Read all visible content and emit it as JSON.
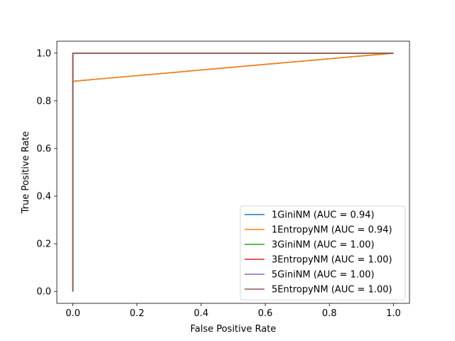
{
  "chart_data": {
    "type": "line",
    "title": "",
    "xlabel": "False Positive Rate",
    "ylabel": "True Positive Rate",
    "xlim": [
      -0.05,
      1.05
    ],
    "ylim": [
      -0.05,
      1.05
    ],
    "xticks": [
      0.0,
      0.2,
      0.4,
      0.6,
      0.8,
      1.0
    ],
    "yticks": [
      0.0,
      0.2,
      0.4,
      0.6,
      0.8,
      1.0
    ],
    "xtick_labels": [
      "0.0",
      "0.2",
      "0.4",
      "0.6",
      "0.8",
      "1.0"
    ],
    "ytick_labels": [
      "0.0",
      "0.2",
      "0.4",
      "0.6",
      "0.8",
      "1.0"
    ],
    "grid": false,
    "legend_position": "lower-right",
    "series": [
      {
        "name": "1GiniNM (AUC = 0.94)",
        "color": "#1f77b4",
        "x": [
          0.0,
          0.0,
          1.0
        ],
        "y": [
          0.0,
          0.882,
          1.0
        ]
      },
      {
        "name": "1EntropyNM (AUC = 0.94)",
        "color": "#ff7f0e",
        "x": [
          0.0,
          0.0,
          1.0
        ],
        "y": [
          0.0,
          0.882,
          1.0
        ]
      },
      {
        "name": "3GiniNM (AUC = 1.00)",
        "color": "#2ca02c",
        "x": [
          0.0,
          0.0,
          1.0
        ],
        "y": [
          0.0,
          1.0,
          1.0
        ]
      },
      {
        "name": "3EntropyNM (AUC = 1.00)",
        "color": "#d62728",
        "x": [
          0.0,
          0.0,
          1.0
        ],
        "y": [
          0.0,
          1.0,
          1.0
        ]
      },
      {
        "name": "5GiniNM (AUC = 1.00)",
        "color": "#9467bd",
        "x": [
          0.0,
          0.0,
          1.0
        ],
        "y": [
          0.0,
          1.0,
          1.0
        ]
      },
      {
        "name": "5EntropyNM (AUC = 1.00)",
        "color": "#8c564b",
        "x": [
          0.0,
          0.0,
          1.0
        ],
        "y": [
          0.0,
          1.0,
          1.0
        ]
      }
    ]
  }
}
